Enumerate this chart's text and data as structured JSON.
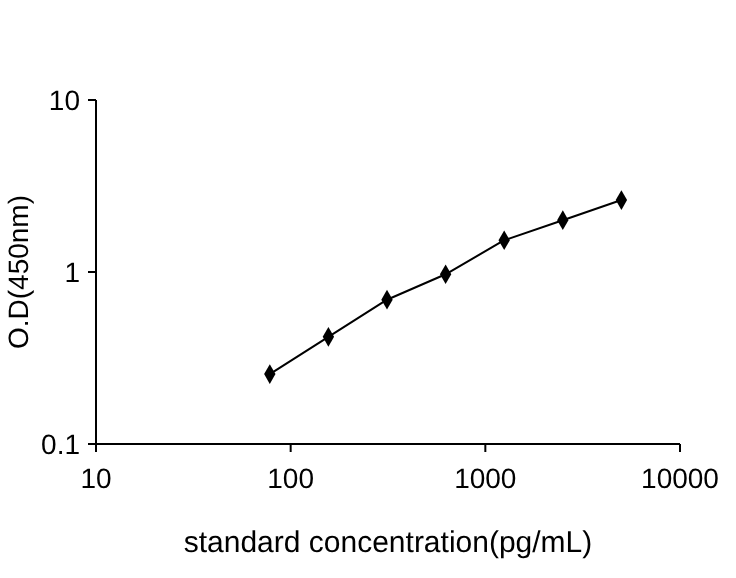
{
  "chart_data": {
    "type": "line",
    "xlabel": "standard concentration(pg/mL)",
    "ylabel": "O.D(450nm)",
    "log": "xy",
    "x": [
      78.125,
      156.25,
      312.5,
      625,
      1250,
      2500,
      5000
    ],
    "series": [
      {
        "color": "#000000",
        "values": [
          0.255,
          0.42,
          0.69,
          0.97,
          1.53,
          2.0,
          2.62
        ]
      }
    ],
    "xlim": [
      10,
      10000
    ],
    "xticks": [
      10,
      100,
      1000,
      10000
    ],
    "ylim": [
      0.1,
      10
    ],
    "yticks": [
      0.1,
      1,
      10
    ],
    "marker": "diamond",
    "line_style": "solid",
    "grid": false
  }
}
